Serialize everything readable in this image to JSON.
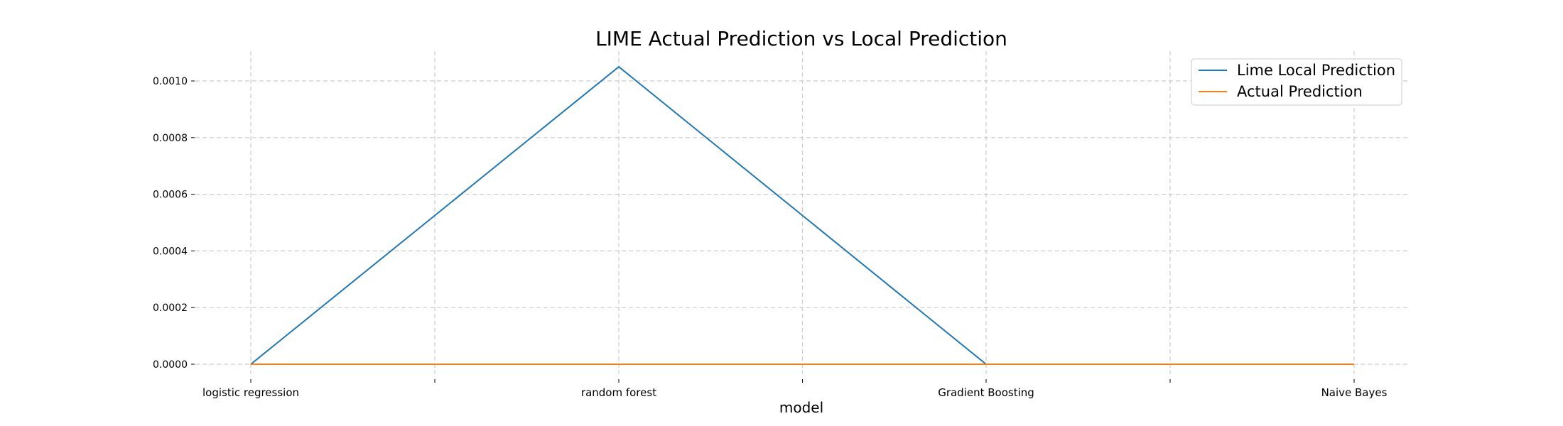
{
  "chart_data": {
    "type": "line",
    "title": "LIME Actual Prediction vs Local Prediction",
    "xlabel": "model",
    "ylabel": "",
    "categories": [
      "logistic regression",
      "random forest",
      "Gradient Boosting",
      "Naive Bayes"
    ],
    "series": [
      {
        "name": "Lime Local Prediction",
        "color": "#1f77b4",
        "values": [
          0.0,
          0.00105,
          0.0,
          0.0
        ]
      },
      {
        "name": "Actual Prediction",
        "color": "#ff7f0e",
        "values": [
          0.0,
          0.0,
          0.0,
          0.0
        ]
      }
    ],
    "ylim": [
      -5e-05,
      0.0011
    ],
    "yticks": [
      "0.0000",
      "0.0002",
      "0.0004",
      "0.0006",
      "0.0008",
      "0.0010"
    ],
    "grid": true,
    "legend_position": "top-right"
  }
}
